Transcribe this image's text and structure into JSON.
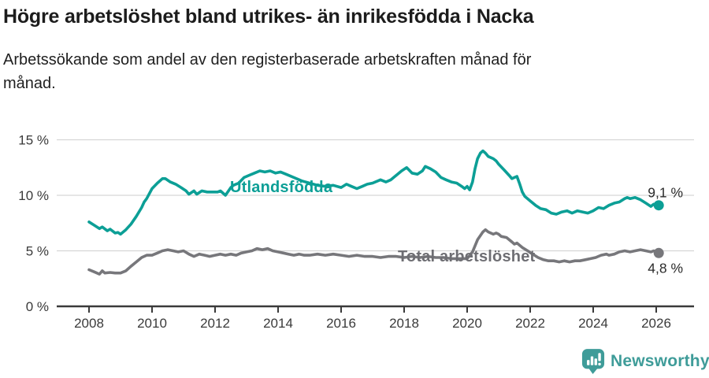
{
  "header": {
    "title": "Högre arbetslöshet bland utrikes- än inrikesfödda i Nacka",
    "subtitle_line1": "Arbetssökande som andel av den registerbaserade arbetskraften månad för",
    "subtitle_line2": "månad."
  },
  "footer": {
    "brand": "Newsworthy",
    "logo_icon": "bar-chart-speech-bubble-icon"
  },
  "colors": {
    "teal_line": "#0c9f96",
    "gray_line": "#77777b",
    "gray_label": "#6e6e73",
    "axis": "#3a3a3a",
    "grid": "#d6d6d6",
    "end_label_text": "#2b2b2b",
    "brand_teal": "#3f9c99"
  },
  "chart_data": {
    "type": "line",
    "title": "Högre arbetslöshet bland utrikes- än inrikesfödda i Nacka",
    "subtitle": "Arbetssökande som andel av den registerbaserade arbetskraften månad för månad.",
    "grid": "horizontal-only",
    "legend": "direct line labels (no legend box)",
    "x_axis": {
      "ticks": [
        2008,
        2010,
        2012,
        2014,
        2016,
        2018,
        2020,
        2022,
        2024,
        2026
      ],
      "range": [
        2007.0,
        2027.2
      ]
    },
    "y_axis": {
      "ticks": [
        0,
        5,
        10,
        15
      ],
      "tick_labels": [
        "0 %",
        "5 %",
        "10 %",
        "15 %"
      ],
      "range": [
        0,
        15
      ],
      "unit": "%"
    },
    "series": [
      {
        "name": "Utlandsfödda",
        "color": "#0c9f96",
        "label_color": "#0c9f96",
        "end_label": "9,1 %",
        "end_value": 9.1,
        "points": [
          [
            2008.0,
            7.6
          ],
          [
            2008.17,
            7.3
          ],
          [
            2008.33,
            7.0
          ],
          [
            2008.42,
            7.15
          ],
          [
            2008.58,
            6.8
          ],
          [
            2008.67,
            6.95
          ],
          [
            2008.83,
            6.6
          ],
          [
            2008.92,
            6.65
          ],
          [
            2009.0,
            6.5
          ],
          [
            2009.17,
            6.9
          ],
          [
            2009.33,
            7.4
          ],
          [
            2009.5,
            8.1
          ],
          [
            2009.67,
            8.9
          ],
          [
            2009.75,
            9.4
          ],
          [
            2009.83,
            9.7
          ],
          [
            2010.0,
            10.6
          ],
          [
            2010.17,
            11.1
          ],
          [
            2010.33,
            11.5
          ],
          [
            2010.42,
            11.5
          ],
          [
            2010.58,
            11.2
          ],
          [
            2010.75,
            11.0
          ],
          [
            2010.92,
            10.7
          ],
          [
            2011.08,
            10.4
          ],
          [
            2011.17,
            10.1
          ],
          [
            2011.33,
            10.4
          ],
          [
            2011.42,
            10.1
          ],
          [
            2011.58,
            10.4
          ],
          [
            2011.75,
            10.3
          ],
          [
            2011.92,
            10.3
          ],
          [
            2012.08,
            10.3
          ],
          [
            2012.17,
            10.4
          ],
          [
            2012.33,
            10.0
          ],
          [
            2012.5,
            10.7
          ],
          [
            2012.58,
            10.9
          ],
          [
            2012.75,
            11.1
          ],
          [
            2012.92,
            11.6
          ],
          [
            2013.08,
            11.8
          ],
          [
            2013.25,
            12.0
          ],
          [
            2013.42,
            12.2
          ],
          [
            2013.58,
            12.1
          ],
          [
            2013.75,
            12.2
          ],
          [
            2013.92,
            12.0
          ],
          [
            2014.08,
            12.1
          ],
          [
            2014.25,
            11.9
          ],
          [
            2014.5,
            11.6
          ],
          [
            2014.75,
            11.3
          ],
          [
            2015.0,
            11.1
          ],
          [
            2015.25,
            10.9
          ],
          [
            2015.5,
            10.8
          ],
          [
            2015.75,
            10.9
          ],
          [
            2016.0,
            10.7
          ],
          [
            2016.17,
            11.0
          ],
          [
            2016.33,
            10.8
          ],
          [
            2016.5,
            10.6
          ],
          [
            2016.67,
            10.8
          ],
          [
            2016.83,
            11.0
          ],
          [
            2017.0,
            11.1
          ],
          [
            2017.25,
            11.4
          ],
          [
            2017.42,
            11.2
          ],
          [
            2017.58,
            11.4
          ],
          [
            2017.75,
            11.8
          ],
          [
            2017.92,
            12.2
          ],
          [
            2018.08,
            12.5
          ],
          [
            2018.25,
            12.0
          ],
          [
            2018.42,
            11.9
          ],
          [
            2018.58,
            12.2
          ],
          [
            2018.67,
            12.6
          ],
          [
            2018.83,
            12.4
          ],
          [
            2019.0,
            12.1
          ],
          [
            2019.17,
            11.6
          ],
          [
            2019.33,
            11.4
          ],
          [
            2019.5,
            11.2
          ],
          [
            2019.67,
            11.1
          ],
          [
            2019.83,
            10.8
          ],
          [
            2019.92,
            10.6
          ],
          [
            2020.0,
            10.8
          ],
          [
            2020.08,
            10.5
          ],
          [
            2020.17,
            11.2
          ],
          [
            2020.25,
            12.4
          ],
          [
            2020.33,
            13.3
          ],
          [
            2020.42,
            13.8
          ],
          [
            2020.5,
            14.0
          ],
          [
            2020.58,
            13.8
          ],
          [
            2020.67,
            13.5
          ],
          [
            2020.83,
            13.3
          ],
          [
            2020.92,
            13.1
          ],
          [
            2021.0,
            12.8
          ],
          [
            2021.17,
            12.3
          ],
          [
            2021.33,
            11.8
          ],
          [
            2021.42,
            11.5
          ],
          [
            2021.5,
            11.6
          ],
          [
            2021.58,
            11.7
          ],
          [
            2021.67,
            11.0
          ],
          [
            2021.75,
            10.3
          ],
          [
            2021.83,
            9.9
          ],
          [
            2022.0,
            9.5
          ],
          [
            2022.17,
            9.1
          ],
          [
            2022.33,
            8.8
          ],
          [
            2022.5,
            8.7
          ],
          [
            2022.67,
            8.4
          ],
          [
            2022.83,
            8.3
          ],
          [
            2023.0,
            8.5
          ],
          [
            2023.17,
            8.6
          ],
          [
            2023.33,
            8.4
          ],
          [
            2023.5,
            8.6
          ],
          [
            2023.67,
            8.5
          ],
          [
            2023.83,
            8.4
          ],
          [
            2024.0,
            8.6
          ],
          [
            2024.17,
            8.9
          ],
          [
            2024.33,
            8.8
          ],
          [
            2024.5,
            9.1
          ],
          [
            2024.67,
            9.3
          ],
          [
            2024.83,
            9.4
          ],
          [
            2025.0,
            9.7
          ],
          [
            2025.08,
            9.8
          ],
          [
            2025.17,
            9.7
          ],
          [
            2025.33,
            9.8
          ],
          [
            2025.5,
            9.6
          ],
          [
            2025.67,
            9.3
          ],
          [
            2025.83,
            9.0
          ],
          [
            2025.92,
            9.2
          ],
          [
            2026.08,
            9.1
          ]
        ]
      },
      {
        "name": "Total arbetslöshet",
        "color": "#77777b",
        "label_color": "#6e6e73",
        "end_label": "4,8 %",
        "end_value": 4.8,
        "points": [
          [
            2008.0,
            3.3
          ],
          [
            2008.17,
            3.1
          ],
          [
            2008.33,
            2.9
          ],
          [
            2008.42,
            3.2
          ],
          [
            2008.5,
            3.0
          ],
          [
            2008.67,
            3.05
          ],
          [
            2008.83,
            3.0
          ],
          [
            2009.0,
            3.0
          ],
          [
            2009.17,
            3.2
          ],
          [
            2009.33,
            3.6
          ],
          [
            2009.5,
            4.0
          ],
          [
            2009.67,
            4.4
          ],
          [
            2009.83,
            4.6
          ],
          [
            2010.0,
            4.6
          ],
          [
            2010.17,
            4.8
          ],
          [
            2010.33,
            5.0
          ],
          [
            2010.5,
            5.1
          ],
          [
            2010.67,
            5.0
          ],
          [
            2010.83,
            4.9
          ],
          [
            2011.0,
            5.0
          ],
          [
            2011.17,
            4.7
          ],
          [
            2011.33,
            4.5
          ],
          [
            2011.5,
            4.7
          ],
          [
            2011.67,
            4.6
          ],
          [
            2011.83,
            4.5
          ],
          [
            2012.0,
            4.6
          ],
          [
            2012.17,
            4.7
          ],
          [
            2012.33,
            4.6
          ],
          [
            2012.5,
            4.7
          ],
          [
            2012.67,
            4.6
          ],
          [
            2012.83,
            4.8
          ],
          [
            2013.0,
            4.9
          ],
          [
            2013.17,
            5.0
          ],
          [
            2013.33,
            5.2
          ],
          [
            2013.5,
            5.1
          ],
          [
            2013.67,
            5.2
          ],
          [
            2013.83,
            5.0
          ],
          [
            2014.0,
            4.9
          ],
          [
            2014.17,
            4.8
          ],
          [
            2014.33,
            4.7
          ],
          [
            2014.5,
            4.6
          ],
          [
            2014.67,
            4.7
          ],
          [
            2014.83,
            4.6
          ],
          [
            2015.0,
            4.6
          ],
          [
            2015.25,
            4.7
          ],
          [
            2015.5,
            4.6
          ],
          [
            2015.75,
            4.7
          ],
          [
            2016.0,
            4.6
          ],
          [
            2016.25,
            4.5
          ],
          [
            2016.5,
            4.6
          ],
          [
            2016.75,
            4.5
          ],
          [
            2017.0,
            4.5
          ],
          [
            2017.25,
            4.4
          ],
          [
            2017.5,
            4.5
          ],
          [
            2017.75,
            4.5
          ],
          [
            2018.0,
            4.4
          ],
          [
            2018.25,
            4.5
          ],
          [
            2018.5,
            4.4
          ],
          [
            2018.75,
            4.5
          ],
          [
            2019.0,
            4.4
          ],
          [
            2019.25,
            4.4
          ],
          [
            2019.5,
            4.3
          ],
          [
            2019.75,
            4.3
          ],
          [
            2020.0,
            4.3
          ],
          [
            2020.17,
            4.9
          ],
          [
            2020.33,
            6.0
          ],
          [
            2020.5,
            6.7
          ],
          [
            2020.58,
            6.9
          ],
          [
            2020.67,
            6.7
          ],
          [
            2020.83,
            6.5
          ],
          [
            2020.92,
            6.6
          ],
          [
            2021.0,
            6.5
          ],
          [
            2021.08,
            6.3
          ],
          [
            2021.25,
            6.2
          ],
          [
            2021.42,
            5.8
          ],
          [
            2021.5,
            5.6
          ],
          [
            2021.58,
            5.7
          ],
          [
            2021.75,
            5.3
          ],
          [
            2021.92,
            5.0
          ],
          [
            2022.08,
            4.7
          ],
          [
            2022.25,
            4.4
          ],
          [
            2022.42,
            4.2
          ],
          [
            2022.58,
            4.1
          ],
          [
            2022.75,
            4.1
          ],
          [
            2022.92,
            4.0
          ],
          [
            2023.08,
            4.1
          ],
          [
            2023.25,
            4.0
          ],
          [
            2023.42,
            4.1
          ],
          [
            2023.58,
            4.1
          ],
          [
            2023.75,
            4.2
          ],
          [
            2023.92,
            4.3
          ],
          [
            2024.08,
            4.4
          ],
          [
            2024.25,
            4.6
          ],
          [
            2024.42,
            4.7
          ],
          [
            2024.5,
            4.6
          ],
          [
            2024.67,
            4.7
          ],
          [
            2024.83,
            4.9
          ],
          [
            2025.0,
            5.0
          ],
          [
            2025.17,
            4.9
          ],
          [
            2025.33,
            5.0
          ],
          [
            2025.5,
            5.1
          ],
          [
            2025.67,
            5.0
          ],
          [
            2025.83,
            4.9
          ],
          [
            2025.92,
            5.0
          ],
          [
            2026.08,
            4.8
          ]
        ]
      }
    ]
  }
}
